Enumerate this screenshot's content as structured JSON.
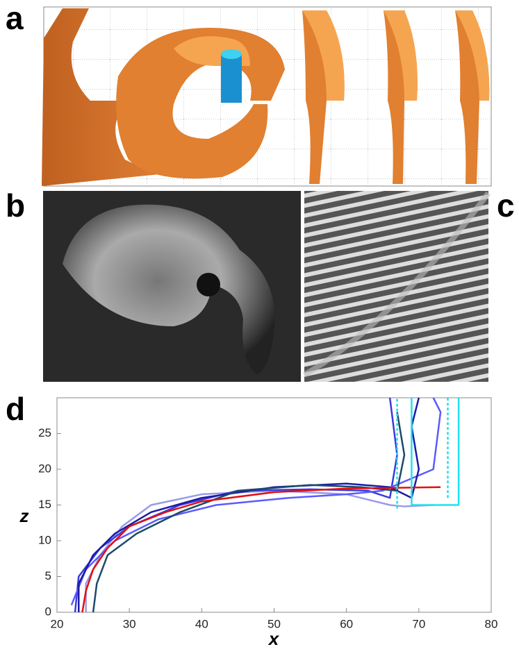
{
  "panel_labels": [
    "a",
    "b",
    "c",
    "d"
  ],
  "chart_data": {
    "type": "line",
    "xlabel": "x",
    "ylabel": "z",
    "xlim": [
      20,
      80
    ],
    "ylim": [
      0,
      30
    ],
    "xticks": [
      20,
      30,
      40,
      50,
      60,
      70,
      80
    ],
    "yticks": [
      0,
      5,
      10,
      15,
      20,
      25
    ],
    "grid": false,
    "series": [
      {
        "color": "#9a9ae8",
        "dash": false,
        "x": [
          24,
          24,
          26,
          29,
          33,
          40,
          50,
          60,
          66,
          68,
          72
        ],
        "values": [
          0,
          4,
          8,
          12,
          15,
          16.5,
          17,
          16.5,
          15,
          14.8,
          15
        ]
      },
      {
        "color": "#3a3ae0",
        "dash": false,
        "x": [
          22.5,
          23,
          26,
          30,
          37,
          45,
          55,
          63,
          66,
          67,
          66
        ],
        "values": [
          0,
          5,
          9,
          12,
          15,
          17,
          17.2,
          17,
          16,
          22,
          30
        ]
      },
      {
        "color": "#5a5aff",
        "dash": false,
        "x": [
          22,
          24,
          28,
          34,
          42,
          52,
          60,
          65,
          72,
          73,
          72
        ],
        "values": [
          1,
          6,
          10,
          13,
          15,
          16,
          16.5,
          17,
          20,
          28,
          30
        ]
      },
      {
        "color": "#1a1aa6",
        "dash": false,
        "x": [
          23,
          23,
          25,
          28,
          33,
          40,
          50,
          60,
          66,
          69,
          70,
          69,
          70
        ],
        "values": [
          0,
          4,
          8,
          11,
          14,
          16,
          17.5,
          18,
          17.5,
          16,
          20,
          26,
          30
        ]
      },
      {
        "color": "#1a4a6a",
        "dash": false,
        "x": [
          25,
          25.5,
          27,
          31,
          37,
          45,
          55,
          62,
          67,
          68,
          67
        ],
        "values": [
          0,
          4,
          8,
          11,
          14,
          17,
          17.8,
          17.5,
          17,
          22,
          28
        ]
      },
      {
        "color": "#e01010",
        "dash": false,
        "x": [
          23.5,
          24,
          25,
          27,
          30,
          35,
          40,
          50,
          60,
          73
        ],
        "values": [
          0,
          3,
          6,
          9,
          12,
          14,
          15.5,
          16.8,
          17.3,
          17.5
        ]
      },
      {
        "color": "#20e0f0",
        "dash": false,
        "x": [
          69,
          69,
          75.5,
          75.5
        ],
        "values": [
          30,
          15,
          15,
          30
        ]
      },
      {
        "color": "#20e0f0",
        "dash": true,
        "x": [
          67,
          67
        ],
        "values": [
          14.5,
          30
        ]
      },
      {
        "color": "#20e0f0",
        "dash": true,
        "x": [
          74,
          74
        ],
        "values": [
          16,
          30
        ]
      }
    ]
  }
}
